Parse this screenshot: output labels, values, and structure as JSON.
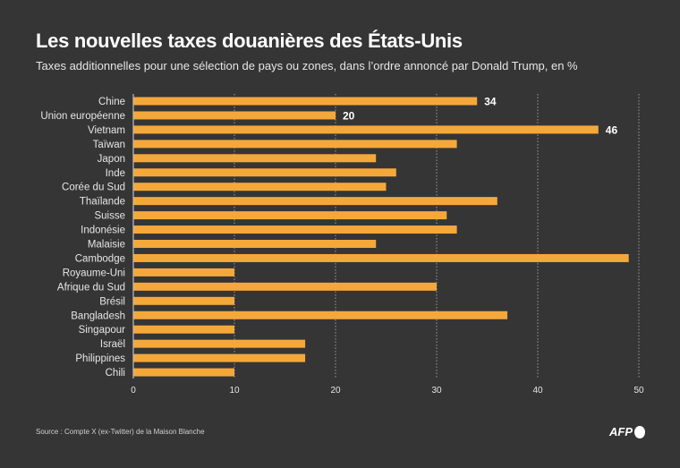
{
  "title": "Les nouvelles taxes douanières des États-Unis",
  "subtitle": "Taxes additionnelles pour une sélection de pays ou zones, dans l’ordre annoncé par Donald Trump, en %",
  "source": "Source : Compte X (ex-Twitter) de la Maison Blanche",
  "logo": "AFP",
  "colors": {
    "background": "#353535",
    "bar": "#f5a83a",
    "text": "#ffffff"
  },
  "chart_data": {
    "type": "bar",
    "orientation": "horizontal",
    "categories": [
      "Chine",
      "Union européenne",
      "Vietnam",
      "Taïwan",
      "Japon",
      "Inde",
      "Corée du Sud",
      "Thaïlande",
      "Suisse",
      "Indonésie",
      "Malaisie",
      "Cambodge",
      "Royaume-Uni",
      "Afrique du Sud",
      "Brésil",
      "Bangladesh",
      "Singapour",
      "Israël",
      "Philippines",
      "Chili"
    ],
    "values": [
      34,
      20,
      46,
      32,
      24,
      26,
      25,
      36,
      31,
      32,
      24,
      49,
      10,
      30,
      10,
      37,
      10,
      17,
      17,
      10
    ],
    "data_labels": {
      "0": "34",
      "1": "20",
      "2": "46"
    },
    "xlim": [
      0,
      50
    ],
    "xticks": [
      "0",
      "10",
      "20",
      "30",
      "40",
      "50"
    ],
    "grid": "vertical dotted"
  }
}
